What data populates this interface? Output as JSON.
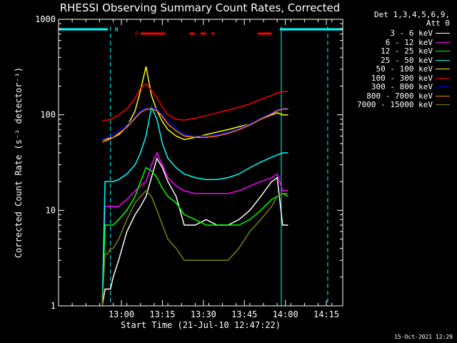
{
  "chart_data": {
    "type": "line",
    "title": "RHESSI Observing Summary Count Rates, Corrected",
    "xlabel": "Start Time (21-Jul-10 12:47:22)",
    "ylabel": "Corrected Count Rate (s⁻¹ detector⁻¹)",
    "yscale": "log",
    "ylim": [
      1,
      1000
    ],
    "xlim": [
      -10,
      94
    ],
    "x_tick_values": [
      13,
      28,
      43,
      58,
      73,
      88
    ],
    "x_tick_labels": [
      "13:00",
      "13:15",
      "13:30",
      "13:45",
      "14:00",
      "14:15"
    ],
    "y_tick_values": [
      1,
      10,
      100,
      1000
    ],
    "y_tick_labels": [
      "1",
      "10",
      "100",
      "1000"
    ],
    "legend_header": [
      "Det 1,3,4,5,6,9,",
      "Att 0"
    ],
    "legend_position": "outside-right",
    "annotations": {
      "night_flag_label": "N",
      "flare_flag_label": "F",
      "night_flag_color": "#00ffff",
      "flare_flag_color": "#ff0000",
      "night_bars": [
        [
          -10,
          8
        ],
        [
          71,
          94
        ]
      ],
      "flare_bars": [
        [
          20,
          29
        ],
        [
          38,
          40
        ],
        [
          42,
          44
        ],
        [
          46,
          47
        ],
        [
          63,
          68
        ]
      ],
      "night_boundaries": [
        9,
        71.5,
        88.5
      ]
    },
    "x": [
      6,
      7,
      8,
      9,
      10,
      12,
      15,
      18,
      20,
      22,
      24,
      26,
      28,
      30,
      33,
      36,
      40,
      44,
      48,
      52,
      56,
      60,
      64,
      68,
      70,
      72,
      74
    ],
    "series": [
      {
        "name": "3 - 6 keV",
        "color": "#ffffff",
        "values": [
          1,
          1.5,
          1.5,
          1.5,
          2,
          3,
          6,
          9,
          11,
          14,
          22,
          35,
          28,
          20,
          14,
          7,
          7,
          8,
          7,
          7,
          8,
          10,
          14,
          20,
          22,
          7,
          7
        ]
      },
      {
        "name": "6 - 12 keV",
        "color": "#ff00ff",
        "values": [
          1,
          11,
          11,
          11,
          11,
          11,
          13,
          16,
          18,
          20,
          30,
          40,
          30,
          22,
          18,
          16,
          15,
          15,
          15,
          15,
          16,
          18,
          20,
          22,
          24,
          16,
          16
        ]
      },
      {
        "name": "12 - 25 keV",
        "color": "#00ff00",
        "values": [
          1,
          7,
          7,
          7,
          7,
          8,
          10,
          14,
          20,
          28,
          26,
          22,
          17,
          14,
          12,
          9,
          8,
          7,
          7,
          7,
          7,
          8,
          10,
          13,
          14,
          15,
          14
        ]
      },
      {
        "name": "25 - 50 keV",
        "color": "#00ffff",
        "values": [
          1,
          20,
          20,
          20,
          20,
          21,
          24,
          30,
          40,
          60,
          120,
          90,
          50,
          35,
          28,
          24,
          22,
          21,
          21,
          22,
          24,
          28,
          32,
          36,
          38,
          40,
          40
        ]
      },
      {
        "name": "50 - 100 keV",
        "color": "#ffff00",
        "values": [
          55,
          55,
          56,
          57,
          58,
          62,
          75,
          110,
          180,
          320,
          160,
          110,
          85,
          70,
          60,
          55,
          58,
          62,
          66,
          70,
          75,
          80,
          90,
          100,
          105,
          100,
          100
        ]
      },
      {
        "name": "100 - 300 keV",
        "color": "#ff0000",
        "values": [
          85,
          88,
          88,
          90,
          92,
          100,
          115,
          150,
          190,
          210,
          180,
          150,
          120,
          100,
          90,
          88,
          92,
          98,
          105,
          112,
          120,
          130,
          145,
          160,
          170,
          175,
          175
        ]
      },
      {
        "name": "300 - 800 keV",
        "color": "#0000ff",
        "values": [
          55,
          56,
          58,
          60,
          62,
          68,
          78,
          95,
          110,
          118,
          120,
          115,
          100,
          85,
          72,
          62,
          60,
          60,
          62,
          66,
          72,
          80,
          92,
          105,
          112,
          118,
          118
        ]
      },
      {
        "name": "800 - 7000 keV",
        "color": "#ff8000",
        "values": [
          52,
          53,
          54,
          56,
          58,
          64,
          74,
          92,
          106,
          114,
          116,
          110,
          96,
          80,
          68,
          60,
          58,
          58,
          60,
          64,
          70,
          78,
          90,
          102,
          110,
          115,
          115
        ]
      },
      {
        "name": "7000 - 15000 keV",
        "color": "#808000",
        "values": [
          1,
          3.5,
          3.5,
          4,
          4,
          5,
          8,
          12,
          14,
          16,
          14,
          10,
          7,
          5,
          4,
          3,
          3,
          3,
          3,
          3,
          4,
          6,
          8,
          11,
          14,
          15,
          15
        ]
      }
    ]
  },
  "footer": {
    "timestamp": "15-Oct-2021 12:29"
  }
}
